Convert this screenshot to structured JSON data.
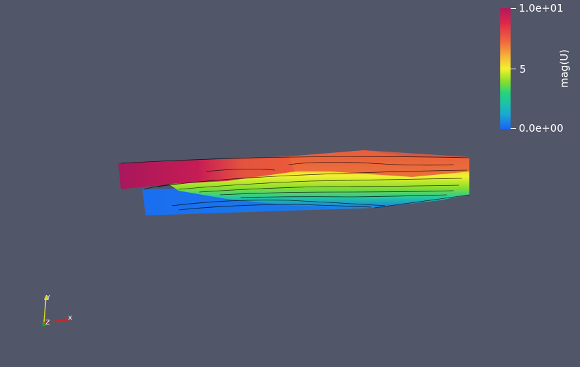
{
  "colorbar": {
    "title": "mag(U)",
    "max_label": "1.0e+01",
    "mid_label": "5",
    "min_label": "0.0e+00",
    "colormap_colors": [
      "#b2185e",
      "#e0264a",
      "#f26a3c",
      "#f6b43a",
      "#f4f22e",
      "#8ee02a",
      "#26d47a",
      "#1aa8d4",
      "#1a64f4"
    ]
  },
  "axes_triad": {
    "x_label": "x",
    "y_label": "Y",
    "z_label": "Z",
    "x_color": "#e02020",
    "y_color": "#e8e020",
    "z_color": "#20a020"
  },
  "background_color": "#525669"
}
